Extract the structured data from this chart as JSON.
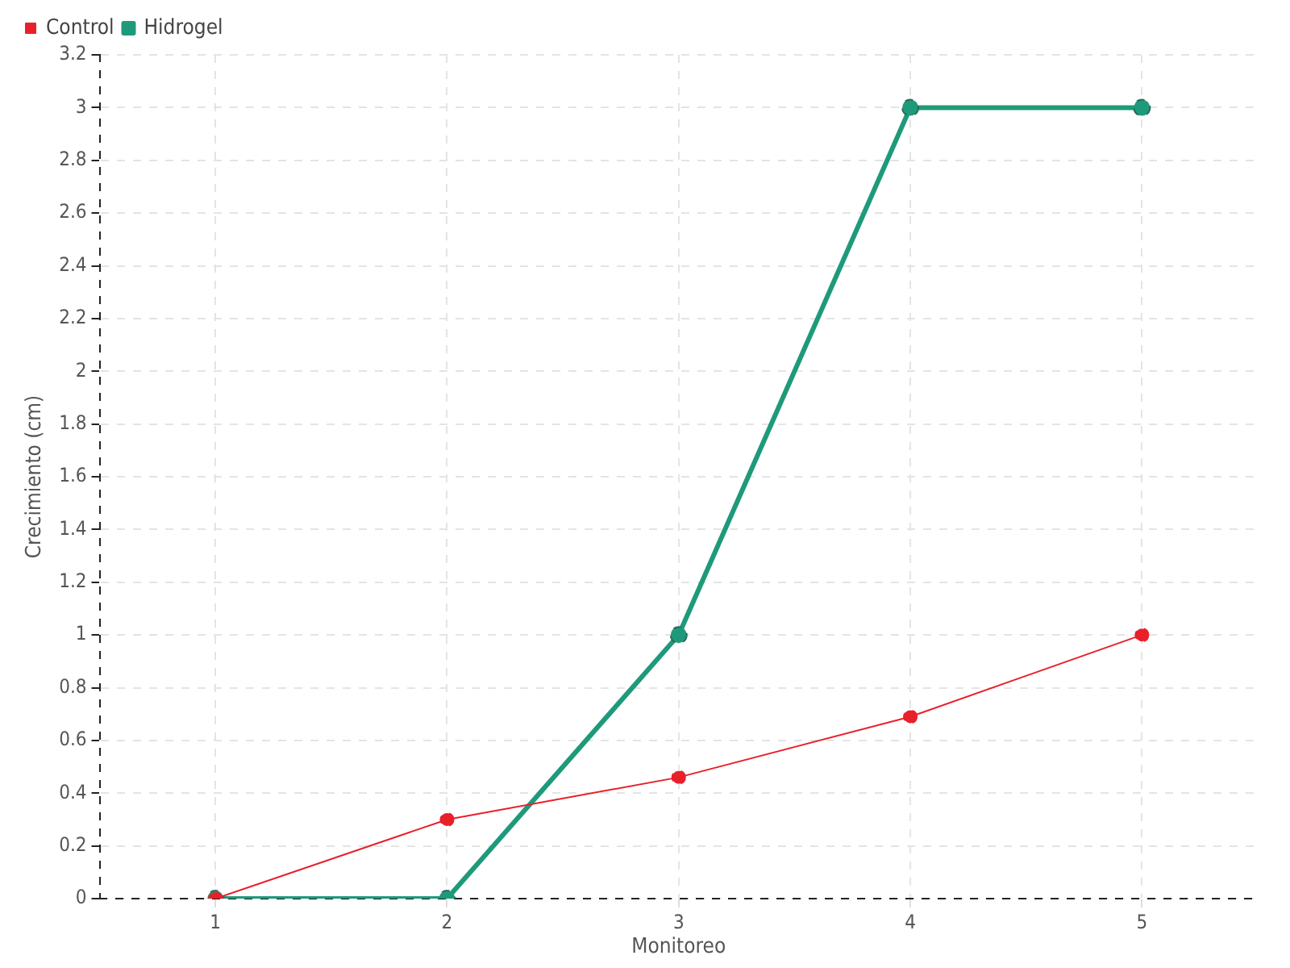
{
  "chart_data": {
    "type": "line",
    "xlabel": "Monitoreo",
    "ylabel": "Crecimiento (cm)",
    "categories": [
      "1",
      "2",
      "3",
      "4",
      "5"
    ],
    "series": [
      {
        "name": "Hidrogel",
        "color": "#1e9a7a",
        "values": [
          0,
          0,
          1,
          3,
          3
        ]
      },
      {
        "name": "Control",
        "color": "#e8202a",
        "values": [
          0,
          0.3,
          0.46,
          0.69,
          1
        ]
      }
    ],
    "ylim": [
      0,
      3.2
    ],
    "yticks": [
      0,
      0.2,
      0.4,
      0.6,
      0.8,
      1,
      1.2,
      1.4,
      1.6,
      1.8,
      2,
      2.2,
      2.4,
      2.6,
      2.8,
      3,
      3.2
    ],
    "grid": true,
    "legend": "top left",
    "marker": "circle",
    "line_style": "solid"
  }
}
